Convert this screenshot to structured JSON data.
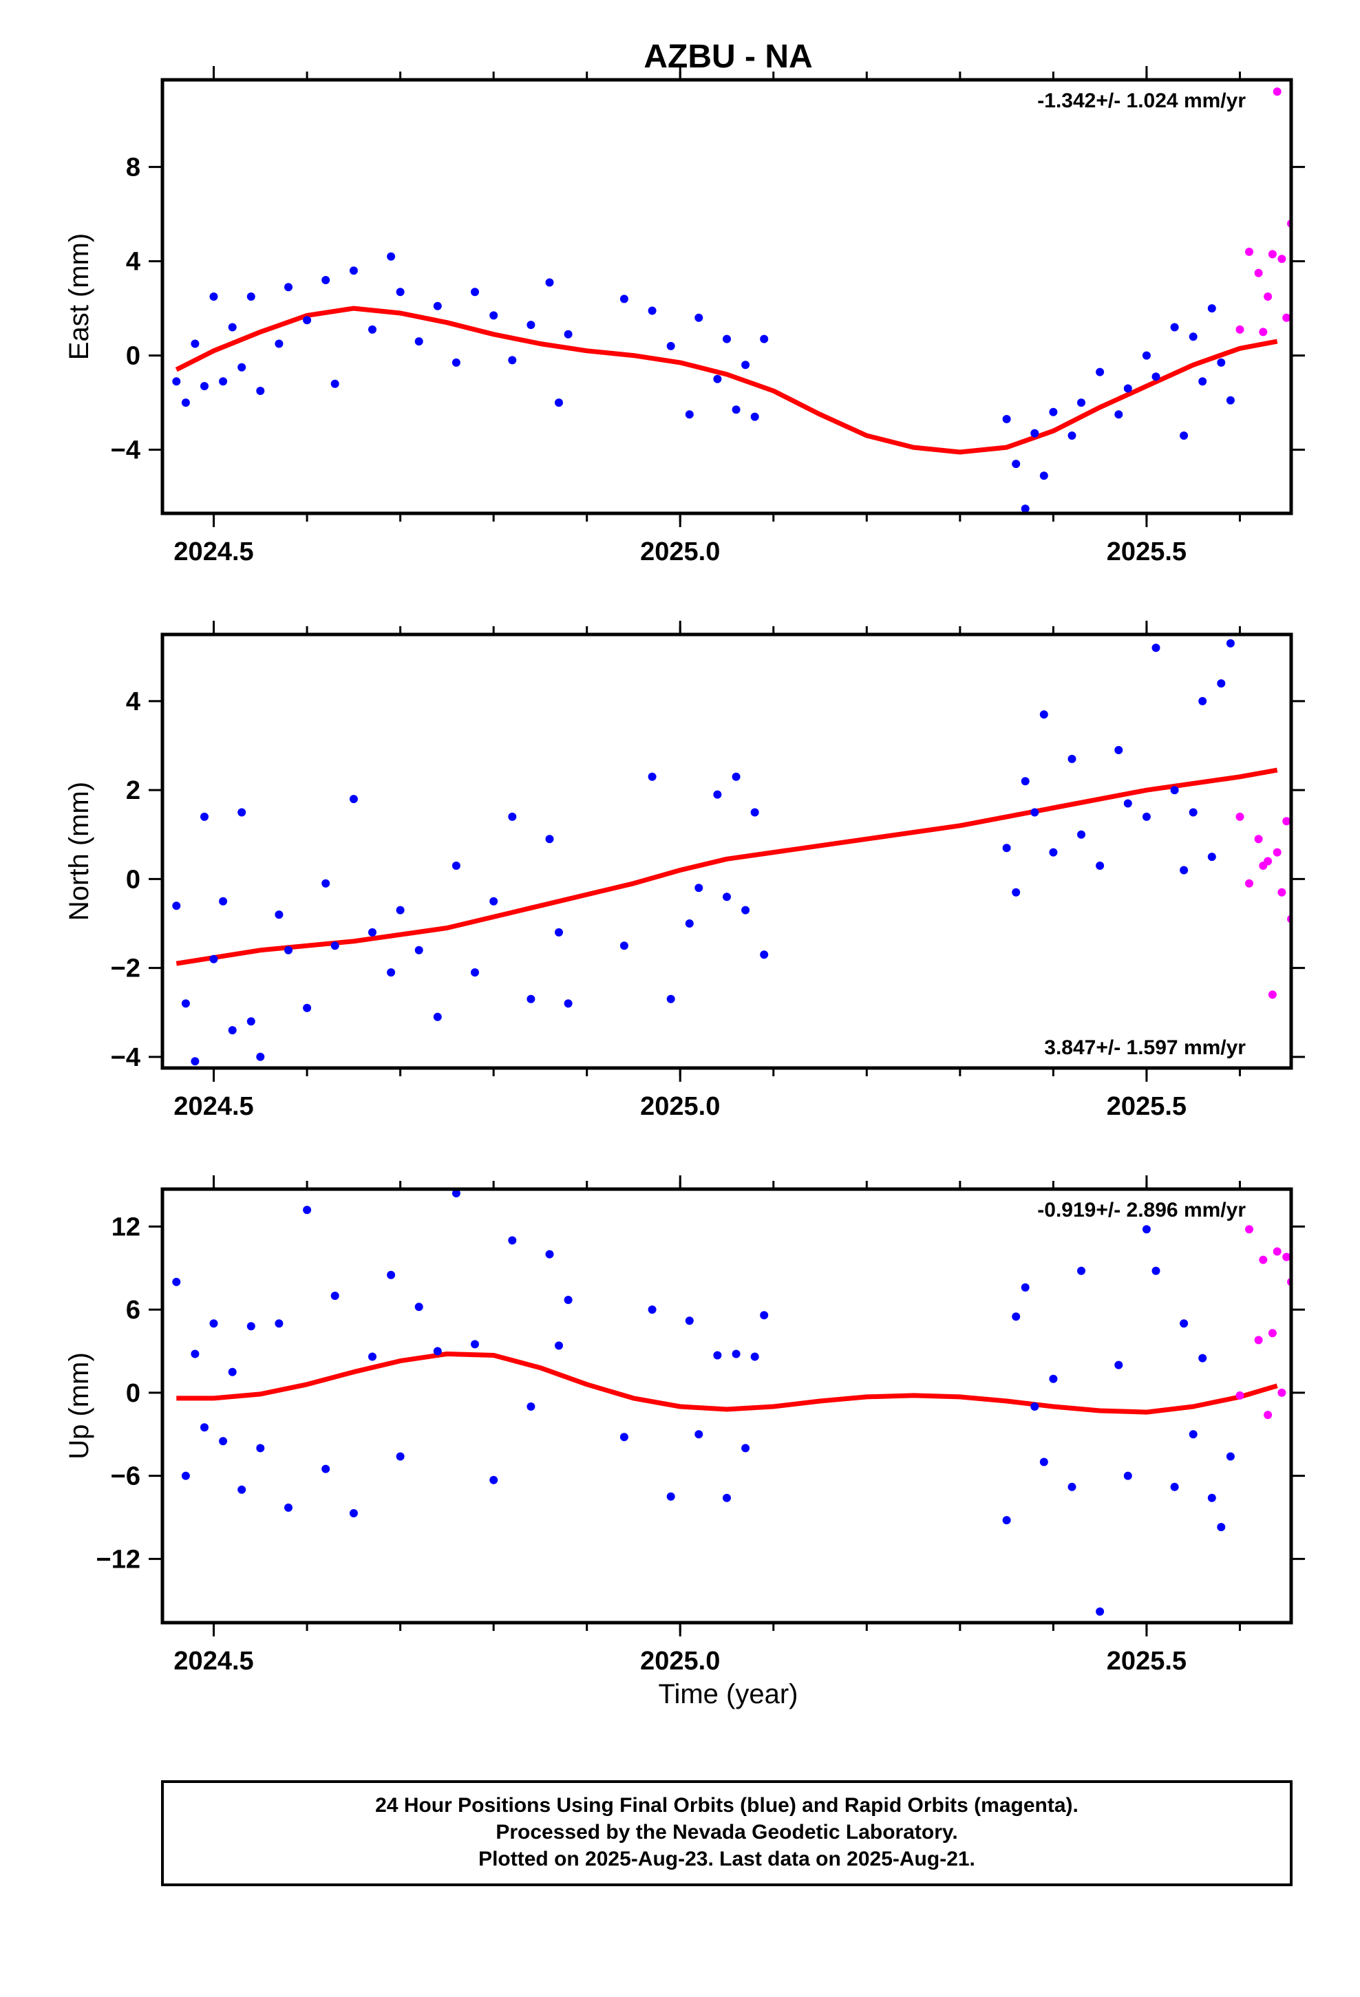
{
  "title": "AZBU - NA",
  "x_axis_label": "Time (year)",
  "footer": {
    "line1": "24 Hour Positions Using Final Orbits (blue) and Rapid Orbits (magenta).",
    "line2": "Processed by the Nevada Geodetic Laboratory.",
    "line3": "Plotted on 2025-Aug-23. Last data on 2025-Aug-21."
  },
  "colors": {
    "final_orbits": "#0000ff",
    "rapid_orbits": "#ff00ff",
    "model_fit": "#ff0000",
    "frame": "#000000"
  },
  "chart_data": [
    {
      "type": "scatter",
      "component": "east",
      "ylabel": "East (mm)",
      "xlim": [
        2024.445,
        2025.655
      ],
      "ylim": [
        -6.7,
        11.7
      ],
      "xticks_major": [
        "2024.5",
        "2025.0",
        "2025.5"
      ],
      "yticks": [
        "−4",
        "0",
        "4",
        "8"
      ],
      "rate_text": "-1.342+/- 1.024 mm/yr",
      "rate_position": "top-right",
      "series": [
        {
          "name": "Final Orbits",
          "color": "blue",
          "x": [
            2024.46,
            2024.47,
            2024.48,
            2024.49,
            2024.5,
            2024.51,
            2024.52,
            2024.53,
            2024.54,
            2024.55,
            2024.57,
            2024.58,
            2024.6,
            2024.62,
            2024.63,
            2024.65,
            2024.67,
            2024.69,
            2024.7,
            2024.72,
            2024.74,
            2024.76,
            2024.78,
            2024.8,
            2024.82,
            2024.84,
            2024.86,
            2024.87,
            2024.88,
            2024.94,
            2024.97,
            2024.99,
            2025.01,
            2025.02,
            2025.04,
            2025.05,
            2025.06,
            2025.07,
            2025.08,
            2025.09,
            2025.35,
            2025.36,
            2025.37,
            2025.38,
            2025.39,
            2025.4,
            2025.42,
            2025.43,
            2025.45,
            2025.47,
            2025.48,
            2025.5,
            2025.51,
            2025.53,
            2025.54,
            2025.55,
            2025.56,
            2025.57,
            2025.58,
            2025.59
          ],
          "y": [
            -1.1,
            -2.0,
            0.5,
            -1.3,
            2.5,
            -1.1,
            1.2,
            -0.5,
            2.5,
            -1.5,
            0.5,
            2.9,
            1.5,
            3.2,
            -1.2,
            3.6,
            1.1,
            4.2,
            2.7,
            0.6,
            2.1,
            -0.3,
            2.7,
            1.7,
            -0.2,
            1.3,
            3.1,
            -2.0,
            0.9,
            2.4,
            1.9,
            0.4,
            -2.5,
            1.6,
            -1.0,
            0.7,
            -2.3,
            -0.4,
            -2.6,
            0.7,
            -2.7,
            -4.6,
            -6.5,
            -3.3,
            -5.1,
            -2.4,
            -3.4,
            -2.0,
            -0.7,
            -2.5,
            -1.4,
            0.0,
            -0.9,
            1.2,
            -3.4,
            0.8,
            -1.1,
            2.0,
            -0.3,
            -1.9
          ]
        },
        {
          "name": "Rapid Orbits",
          "color": "magenta",
          "x": [
            2025.6,
            2025.61,
            2025.62,
            2025.625,
            2025.63,
            2025.635,
            2025.64,
            2025.645,
            2025.65,
            2025.655
          ],
          "y": [
            1.1,
            4.4,
            3.5,
            1.0,
            2.5,
            4.3,
            11.2,
            4.1,
            1.6,
            5.6
          ]
        }
      ],
      "model_fit": {
        "name": "Model fit",
        "color": "red",
        "x": [
          2024.46,
          2024.5,
          2024.55,
          2024.6,
          2024.65,
          2024.7,
          2024.75,
          2024.8,
          2024.85,
          2024.9,
          2024.95,
          2025.0,
          2025.05,
          2025.1,
          2025.15,
          2025.2,
          2025.25,
          2025.3,
          2025.35,
          2025.4,
          2025.45,
          2025.5,
          2025.55,
          2025.6,
          2025.64
        ],
        "y": [
          -0.6,
          0.2,
          1.0,
          1.7,
          2.0,
          1.8,
          1.4,
          0.9,
          0.5,
          0.2,
          0.0,
          -0.3,
          -0.8,
          -1.5,
          -2.5,
          -3.4,
          -3.9,
          -4.1,
          -3.9,
          -3.2,
          -2.2,
          -1.3,
          -0.4,
          0.3,
          0.6
        ]
      }
    },
    {
      "type": "scatter",
      "component": "north",
      "ylabel": "North (mm)",
      "xlim": [
        2024.445,
        2025.655
      ],
      "ylim": [
        -4.25,
        5.5
      ],
      "xticks_major": [
        "2024.5",
        "2025.0",
        "2025.5"
      ],
      "yticks": [
        "−4",
        "−2",
        "0",
        "2",
        "4"
      ],
      "rate_text": "3.847+/- 1.597 mm/yr",
      "rate_position": "bottom-right",
      "series": [
        {
          "name": "Final Orbits",
          "color": "blue",
          "x": [
            2024.46,
            2024.47,
            2024.48,
            2024.49,
            2024.5,
            2024.51,
            2024.52,
            2024.53,
            2024.54,
            2024.55,
            2024.57,
            2024.58,
            2024.6,
            2024.62,
            2024.63,
            2024.65,
            2024.67,
            2024.69,
            2024.7,
            2024.72,
            2024.74,
            2024.76,
            2024.78,
            2024.8,
            2024.82,
            2024.84,
            2024.86,
            2024.87,
            2024.88,
            2024.94,
            2024.97,
            2024.99,
            2025.01,
            2025.02,
            2025.04,
            2025.05,
            2025.06,
            2025.07,
            2025.08,
            2025.09,
            2025.35,
            2025.36,
            2025.37,
            2025.38,
            2025.39,
            2025.4,
            2025.42,
            2025.43,
            2025.45,
            2025.47,
            2025.48,
            2025.5,
            2025.51,
            2025.53,
            2025.54,
            2025.55,
            2025.56,
            2025.57,
            2025.58,
            2025.59
          ],
          "y": [
            -0.6,
            -2.8,
            -4.1,
            1.4,
            -1.8,
            -0.5,
            -3.4,
            1.5,
            -3.2,
            -4.0,
            -0.8,
            -1.6,
            -2.9,
            -0.1,
            -1.5,
            1.8,
            -1.2,
            -2.1,
            -0.7,
            -1.6,
            -3.1,
            0.3,
            -2.1,
            -0.5,
            1.4,
            -2.7,
            0.9,
            -1.2,
            -2.8,
            -1.5,
            2.3,
            -2.7,
            -1.0,
            -0.2,
            1.9,
            -0.4,
            2.3,
            -0.7,
            1.5,
            -1.7,
            0.7,
            -0.3,
            2.2,
            1.5,
            3.7,
            0.6,
            2.7,
            1.0,
            0.3,
            2.9,
            1.7,
            1.4,
            5.2,
            2.0,
            0.2,
            1.5,
            4.0,
            0.5,
            4.4,
            5.3
          ]
        },
        {
          "name": "Rapid Orbits",
          "color": "magenta",
          "x": [
            2025.6,
            2025.61,
            2025.62,
            2025.625,
            2025.63,
            2025.635,
            2025.64,
            2025.645,
            2025.65,
            2025.655
          ],
          "y": [
            1.4,
            -0.1,
            0.9,
            0.3,
            0.4,
            -2.6,
            0.6,
            -0.3,
            1.3,
            -0.9
          ]
        }
      ],
      "model_fit": {
        "name": "Model fit",
        "color": "red",
        "x": [
          2024.46,
          2024.55,
          2024.65,
          2024.75,
          2024.85,
          2024.95,
          2025.0,
          2025.05,
          2025.1,
          2025.2,
          2025.3,
          2025.4,
          2025.5,
          2025.6,
          2025.64
        ],
        "y": [
          -1.9,
          -1.6,
          -1.4,
          -1.1,
          -0.6,
          -0.1,
          0.2,
          0.45,
          0.6,
          0.9,
          1.2,
          1.6,
          2.0,
          2.3,
          2.45
        ]
      }
    },
    {
      "type": "scatter",
      "component": "up",
      "ylabel": "Up (mm)",
      "xlim": [
        2024.445,
        2025.655
      ],
      "ylim": [
        -16.6,
        14.7
      ],
      "xticks_major": [
        "2024.5",
        "2025.0",
        "2025.5"
      ],
      "yticks": [
        "−12",
        "−6",
        "0",
        "6",
        "12"
      ],
      "rate_text": "-0.919+/- 2.896 mm/yr",
      "rate_position": "top-right",
      "series": [
        {
          "name": "Final Orbits",
          "color": "blue",
          "x": [
            2024.46,
            2024.47,
            2024.48,
            2024.49,
            2024.5,
            2024.51,
            2024.52,
            2024.53,
            2024.54,
            2024.55,
            2024.57,
            2024.58,
            2024.6,
            2024.62,
            2024.63,
            2024.65,
            2024.67,
            2024.69,
            2024.7,
            2024.72,
            2024.74,
            2024.76,
            2024.78,
            2024.8,
            2024.82,
            2024.84,
            2024.86,
            2024.87,
            2024.88,
            2024.94,
            2024.97,
            2024.99,
            2025.01,
            2025.02,
            2025.04,
            2025.05,
            2025.06,
            2025.07,
            2025.08,
            2025.09,
            2025.35,
            2025.36,
            2025.37,
            2025.38,
            2025.39,
            2025.4,
            2025.42,
            2025.43,
            2025.45,
            2025.47,
            2025.48,
            2025.5,
            2025.51,
            2025.53,
            2025.54,
            2025.55,
            2025.56,
            2025.57,
            2025.58,
            2025.59
          ],
          "y": [
            8.0,
            -6.0,
            2.8,
            -2.5,
            5.0,
            -3.5,
            1.5,
            -7.0,
            4.8,
            -4.0,
            5.0,
            -8.3,
            13.2,
            -5.5,
            7.0,
            -8.7,
            2.6,
            8.5,
            -4.6,
            6.2,
            3.0,
            14.4,
            3.5,
            -6.3,
            11.0,
            -1.0,
            10.0,
            3.4,
            6.7,
            -3.2,
            6.0,
            -7.5,
            5.2,
            -3.0,
            2.7,
            -7.6,
            2.8,
            -4.0,
            2.6,
            5.6,
            -9.2,
            5.5,
            7.6,
            -1.0,
            -5.0,
            1.0,
            -6.8,
            8.8,
            -15.8,
            2.0,
            -6.0,
            11.8,
            8.8,
            -6.8,
            5.0,
            -3.0,
            2.5,
            -7.6,
            -9.7,
            -4.6
          ]
        },
        {
          "name": "Rapid Orbits",
          "color": "magenta",
          "x": [
            2025.6,
            2025.61,
            2025.62,
            2025.625,
            2025.63,
            2025.635,
            2025.64,
            2025.645,
            2025.65,
            2025.655
          ],
          "y": [
            -0.2,
            11.8,
            3.8,
            9.6,
            -1.6,
            4.3,
            10.2,
            0.0,
            9.8,
            8.0
          ]
        }
      ],
      "model_fit": {
        "name": "Model fit",
        "color": "red",
        "x": [
          2024.46,
          2024.5,
          2024.55,
          2024.6,
          2024.65,
          2024.7,
          2024.75,
          2024.8,
          2024.85,
          2024.9,
          2024.95,
          2025.0,
          2025.05,
          2025.1,
          2025.15,
          2025.2,
          2025.25,
          2025.3,
          2025.35,
          2025.4,
          2025.45,
          2025.5,
          2025.55,
          2025.6,
          2025.64
        ],
        "y": [
          -0.4,
          -0.4,
          -0.1,
          0.6,
          1.5,
          2.3,
          2.8,
          2.7,
          1.8,
          0.6,
          -0.4,
          -1.0,
          -1.2,
          -1.0,
          -0.6,
          -0.3,
          -0.2,
          -0.3,
          -0.6,
          -1.0,
          -1.3,
          -1.4,
          -1.0,
          -0.3,
          0.5
        ]
      }
    }
  ]
}
